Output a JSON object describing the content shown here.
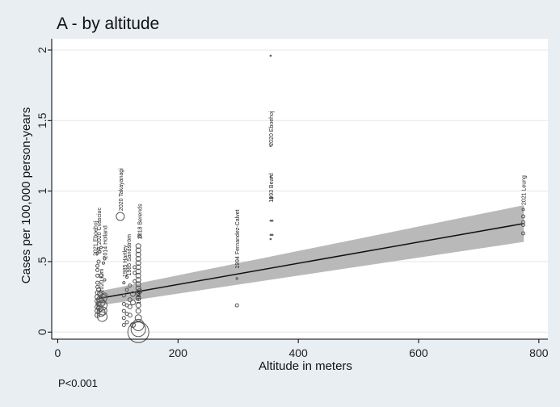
{
  "chart_data": {
    "type": "scatter",
    "title": "A - by altitude",
    "xlabel": "Altitude in meters",
    "ylabel": "Cases per 100,000 person-years",
    "xlim": [
      -10,
      815
    ],
    "ylim": [
      -0.05,
      2.08
    ],
    "xticks": [
      "0",
      "200",
      "400",
      "600",
      "800"
    ],
    "xtick_values": [
      0,
      200,
      400,
      600,
      800
    ],
    "yticks": [
      "0",
      ".5",
      "1",
      "1.5",
      "2"
    ],
    "ytick_values": [
      0,
      0.5,
      1,
      1.5,
      2
    ],
    "grid": "horizontal",
    "colors": {
      "background": "#e9eef3",
      "plot": "#ffffff",
      "grid": "#e3e7ea",
      "band": "#b9b9b9",
      "line": "#111111",
      "marker": "#555555"
    },
    "fit_line": {
      "x": [
        70,
        775
      ],
      "y": [
        0.24,
        0.77
      ]
    },
    "ci_band": {
      "x": [
        70,
        775
      ],
      "lower": [
        0.19,
        0.64
      ],
      "upper": [
        0.29,
        0.9
      ]
    },
    "points": [
      {
        "x": 66,
        "y": 0.56,
        "r": 1.5
      },
      {
        "x": 66,
        "y": 0.47,
        "r": 2
      },
      {
        "x": 66,
        "y": 0.44,
        "r": 2
      },
      {
        "x": 66,
        "y": 0.4,
        "r": 2
      },
      {
        "x": 66,
        "y": 0.35,
        "r": 2
      },
      {
        "x": 66,
        "y": 0.32,
        "r": 2
      },
      {
        "x": 66,
        "y": 0.28,
        "r": 2.5
      },
      {
        "x": 66,
        "y": 0.25,
        "r": 3
      },
      {
        "x": 66,
        "y": 0.22,
        "r": 3
      },
      {
        "x": 66,
        "y": 0.18,
        "r": 3
      },
      {
        "x": 66,
        "y": 0.15,
        "r": 3
      },
      {
        "x": 66,
        "y": 0.12,
        "r": 3
      },
      {
        "x": 68,
        "y": 0.59,
        "r": 1.5
      },
      {
        "x": 68,
        "y": 0.5,
        "r": 2
      },
      {
        "x": 68,
        "y": 0.3,
        "r": 2.5
      },
      {
        "x": 68,
        "y": 0.2,
        "r": 3
      },
      {
        "x": 70,
        "y": 0.57,
        "r": 1.5
      },
      {
        "x": 70,
        "y": 0.27,
        "r": 3
      },
      {
        "x": 70,
        "y": 0.23,
        "r": 4
      },
      {
        "x": 70,
        "y": 0.17,
        "r": 4
      },
      {
        "x": 72,
        "y": 0.6,
        "r": 1.5
      },
      {
        "x": 72,
        "y": 0.4,
        "r": 2.5
      },
      {
        "x": 72,
        "y": 0.21,
        "r": 5
      },
      {
        "x": 72,
        "y": 0.14,
        "r": 5
      },
      {
        "x": 74,
        "y": 0.11,
        "r": 6
      },
      {
        "x": 74,
        "y": 0.19,
        "r": 6
      },
      {
        "x": 75,
        "y": 0.15,
        "r": 5
      },
      {
        "x": 75,
        "y": 0.24,
        "r": 5
      },
      {
        "x": 76,
        "y": 0.49,
        "r": 1.5
      },
      {
        "x": 78,
        "y": 0.52,
        "r": 1.5
      },
      {
        "x": 78,
        "y": 0.37,
        "r": 1.5
      },
      {
        "x": 78,
        "y": 0.26,
        "r": 3
      },
      {
        "x": 104,
        "y": 0.82,
        "r": 5
      },
      {
        "x": 110,
        "y": 0.05,
        "r": 2
      },
      {
        "x": 110,
        "y": 0.1,
        "r": 2
      },
      {
        "x": 110,
        "y": 0.15,
        "r": 2
      },
      {
        "x": 110,
        "y": 0.2,
        "r": 2
      },
      {
        "x": 110,
        "y": 0.26,
        "r": 2
      },
      {
        "x": 110,
        "y": 0.35,
        "r": 1.5
      },
      {
        "x": 115,
        "y": 0.07,
        "r": 2
      },
      {
        "x": 115,
        "y": 0.13,
        "r": 2
      },
      {
        "x": 115,
        "y": 0.19,
        "r": 2
      },
      {
        "x": 115,
        "y": 0.3,
        "r": 2
      },
      {
        "x": 115,
        "y": 0.39,
        "r": 1.5
      },
      {
        "x": 120,
        "y": 0.12,
        "r": 2.5
      },
      {
        "x": 120,
        "y": 0.18,
        "r": 2.5
      },
      {
        "x": 120,
        "y": 0.23,
        "r": 2.5
      },
      {
        "x": 120,
        "y": 0.33,
        "r": 2
      },
      {
        "x": 125,
        "y": 0.05,
        "r": 3
      },
      {
        "x": 125,
        "y": 0.21,
        "r": 3
      },
      {
        "x": 125,
        "y": 0.27,
        "r": 3
      },
      {
        "x": 128,
        "y": 0.36,
        "r": 2
      },
      {
        "x": 128,
        "y": 0.42,
        "r": 2
      },
      {
        "x": 128,
        "y": 0.46,
        "r": 2
      },
      {
        "x": 134,
        "y": 0.0,
        "r": 13
      },
      {
        "x": 134,
        "y": 0.02,
        "r": 9
      },
      {
        "x": 134,
        "y": 0.05,
        "r": 7
      },
      {
        "x": 134,
        "y": 0.1,
        "r": 4
      },
      {
        "x": 134,
        "y": 0.15,
        "r": 3
      },
      {
        "x": 134,
        "y": 0.19,
        "r": 3
      },
      {
        "x": 134,
        "y": 0.24,
        "r": 3
      },
      {
        "x": 134,
        "y": 0.28,
        "r": 3
      },
      {
        "x": 134,
        "y": 0.31,
        "r": 3
      },
      {
        "x": 134,
        "y": 0.34,
        "r": 3
      },
      {
        "x": 134,
        "y": 0.37,
        "r": 3
      },
      {
        "x": 134,
        "y": 0.4,
        "r": 3
      },
      {
        "x": 134,
        "y": 0.43,
        "r": 3
      },
      {
        "x": 134,
        "y": 0.46,
        "r": 3
      },
      {
        "x": 134,
        "y": 0.49,
        "r": 3
      },
      {
        "x": 134,
        "y": 0.52,
        "r": 3
      },
      {
        "x": 134,
        "y": 0.55,
        "r": 3
      },
      {
        "x": 134,
        "y": 0.58,
        "r": 3
      },
      {
        "x": 134,
        "y": 0.61,
        "r": 3
      },
      {
        "x": 136,
        "y": 0.68,
        "r": 2
      },
      {
        "x": 136,
        "y": 0.29,
        "r": 3
      },
      {
        "x": 298,
        "y": 0.38,
        "r": 1.2
      },
      {
        "x": 298,
        "y": 0.19,
        "r": 2
      },
      {
        "x": 354,
        "y": 1.96,
        "r": 0.8
      },
      {
        "x": 354,
        "y": 1.32,
        "r": 0.8
      },
      {
        "x": 354,
        "y": 1.1,
        "r": 0.8
      },
      {
        "x": 354,
        "y": 0.95,
        "r": 0.8
      },
      {
        "x": 354,
        "y": 0.79,
        "r": 0.8
      },
      {
        "x": 354,
        "y": 0.69,
        "r": 0.8
      },
      {
        "x": 354,
        "y": 0.66,
        "r": 0.8
      },
      {
        "x": 357,
        "y": 0.95,
        "r": 0.8
      },
      {
        "x": 357,
        "y": 0.79,
        "r": 0.8
      },
      {
        "x": 357,
        "y": 0.69,
        "r": 0.8
      },
      {
        "x": 774,
        "y": 0.87,
        "r": 1.5
      },
      {
        "x": 774,
        "y": 0.82,
        "r": 2
      },
      {
        "x": 774,
        "y": 0.78,
        "r": 2
      },
      {
        "x": 774,
        "y": 0.76,
        "r": 2
      },
      {
        "x": 774,
        "y": 0.7,
        "r": 2
      }
    ],
    "labels": [
      {
        "text": "2021 Eboehoj",
        "x": 66,
        "y": 0.54
      },
      {
        "text": "2020 Cvasciuc",
        "x": 72,
        "y": 0.62
      },
      {
        "text": "2014 Holland",
        "x": 82,
        "y": 0.52
      },
      {
        "text": "2020 Kim",
        "x": 76,
        "y": 0.28
      },
      {
        "text": "2020 Takayanagi",
        "x": 108,
        "y": 0.86
      },
      {
        "text": "1985 Hartley",
        "x": 115,
        "y": 0.39
      },
      {
        "text": "1985 Sandström",
        "x": 122,
        "y": 0.4
      },
      {
        "text": "2018 Berends",
        "x": 140,
        "y": 0.66
      },
      {
        "text": "1984",
        "x": 138,
        "y": 0.2
      },
      {
        "text": "1994 Fernandez-Calvet",
        "x": 302,
        "y": 0.45
      },
      {
        "text": "2020 Eboehoj",
        "x": 358,
        "y": 1.32
      },
      {
        "text": "1993 Beard",
        "x": 358,
        "y": 0.92
      },
      {
        "text": "2021 Leung",
        "x": 778,
        "y": 0.9
      }
    ]
  },
  "footnote": "P<0.001"
}
